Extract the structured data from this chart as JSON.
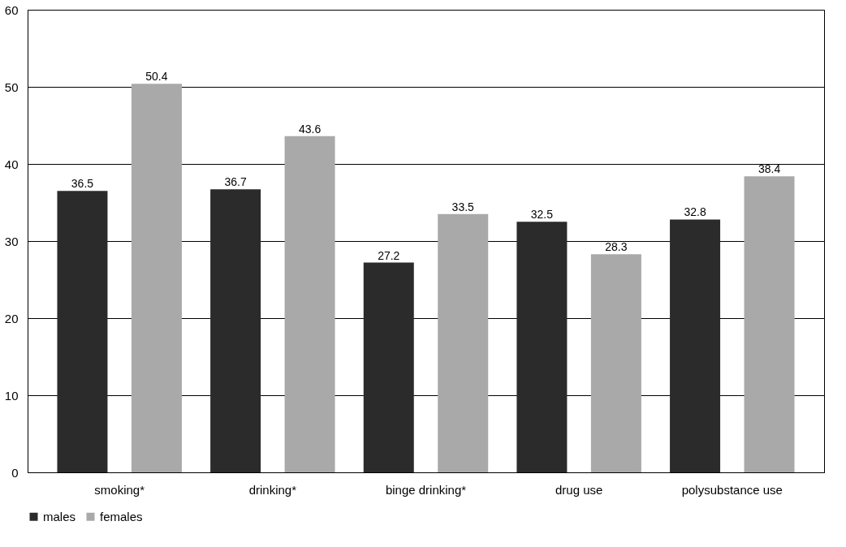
{
  "chart_data": {
    "type": "bar",
    "categories": [
      "smoking*",
      "drinking*",
      "binge drinking*",
      "drug use",
      "polysubstance use"
    ],
    "series": [
      {
        "name": "males",
        "color": "#2b2b2b",
        "values": [
          36.5,
          36.7,
          27.2,
          32.5,
          32.8
        ]
      },
      {
        "name": "females",
        "color": "#a9a9a9",
        "values": [
          50.4,
          43.6,
          33.5,
          28.3,
          38.4
        ]
      }
    ],
    "ylim": [
      0,
      60
    ],
    "yticks": [
      0,
      10,
      20,
      30,
      40,
      50,
      60
    ],
    "grid": "y",
    "legend": "bottom",
    "data_labels": true
  }
}
